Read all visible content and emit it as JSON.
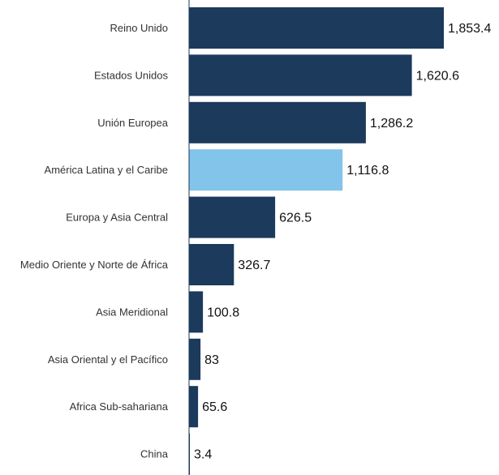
{
  "chart_data": {
    "type": "bar",
    "orientation": "horizontal",
    "title": "",
    "xlabel": "",
    "ylabel": "",
    "categories": [
      "Reino Unido",
      "Estados Unidos",
      "Unión Europea",
      "América Latina y el Caribe",
      "Europa y Asia Central",
      "Medio Oriente y Norte de África",
      "Asia Meridional",
      "Asia Oriental y el Pacífico",
      "Africa Sub-sahariana",
      "China"
    ],
    "values": [
      1853.4,
      1620.6,
      1286.2,
      1116.8,
      626.5,
      326.7,
      100.8,
      83,
      65.6,
      3.4
    ],
    "value_labels": [
      "1,853.4",
      "1,620.6",
      "1,286.2",
      "1,116.8",
      "626.5",
      "326.7",
      "100.8",
      "83",
      "65.6",
      "3.4"
    ],
    "highlight_index": 3,
    "colors": {
      "bar": "#1b3a5c",
      "highlight": "#82c4ea",
      "axis": "#1b3a5c"
    },
    "xlim": [
      0,
      1853.4
    ],
    "grid": false,
    "legend": "none"
  }
}
